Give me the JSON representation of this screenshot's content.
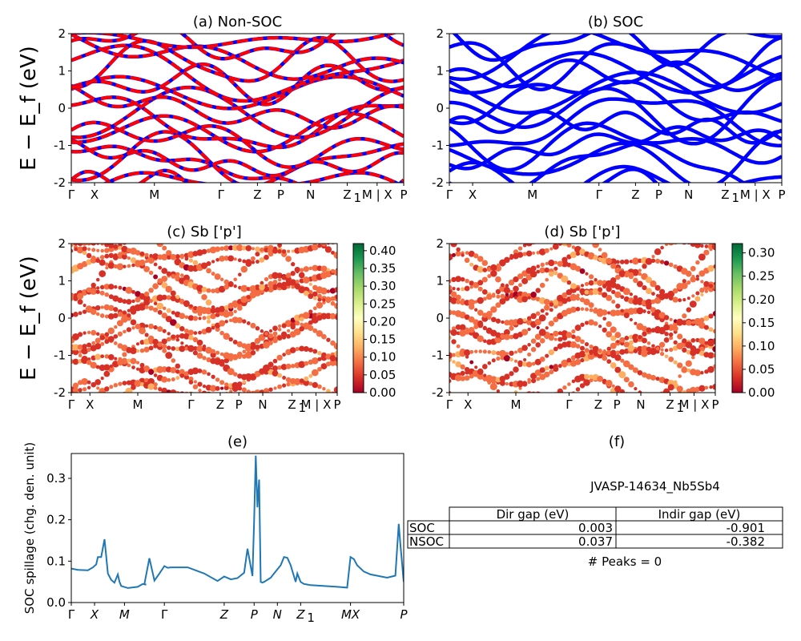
{
  "y_axis_label": "E − E_f (eV)",
  "chart_data": [
    {
      "id": "a",
      "type": "line",
      "title": "(a) Non-SOC",
      "ylabel": "E − E_f (eV)",
      "ylim": [
        -2,
        2
      ],
      "yticks": [
        "-2",
        "-1",
        "0",
        "1",
        "2"
      ],
      "xtick_labels": [
        "Γ",
        "X",
        "M",
        "Γ",
        "Z",
        "P",
        "N",
        "Z1",
        "M | X",
        "P"
      ],
      "series_colors": [
        "#0000ff",
        "#ff0000"
      ],
      "line_style": "blue solid bands overlaid with red dashed bands"
    },
    {
      "id": "b",
      "type": "line",
      "title": "(b) SOC",
      "ylim": [
        -2,
        2
      ],
      "yticks": [
        "-2",
        "-1",
        "0",
        "1",
        "2"
      ],
      "xtick_labels": [
        "Γ",
        "X",
        "M",
        "Γ",
        "Z",
        "P",
        "N",
        "Z1",
        "M | X",
        "P"
      ],
      "series_colors": [
        "#0000ff"
      ]
    },
    {
      "id": "c",
      "type": "scatter",
      "title": "(c)  Sb ['p']",
      "ylabel": "E − E_f (eV)",
      "ylim": [
        -2,
        2
      ],
      "yticks": [
        "-2",
        "-1",
        "0",
        "1",
        "2"
      ],
      "xtick_labels": [
        "Γ",
        "X",
        "M",
        "Γ",
        "Z",
        "P",
        "N",
        "Z1",
        "M | X",
        "P"
      ],
      "colorbar": {
        "colormap": "RdYlGn",
        "ticks": [
          "0.00",
          "0.05",
          "0.10",
          "0.15",
          "0.20",
          "0.25",
          "0.30",
          "0.35",
          "0.40"
        ],
        "range": [
          0,
          0.42
        ]
      }
    },
    {
      "id": "d",
      "type": "scatter",
      "title": "(d) Sb ['p']",
      "ylim": [
        -2,
        2
      ],
      "yticks": [
        "-2",
        "-1",
        "0",
        "1",
        "2"
      ],
      "xtick_labels": [
        "Γ",
        "X",
        "M",
        "Γ",
        "Z",
        "P",
        "N",
        "Z1",
        "M | X",
        "P"
      ],
      "colorbar": {
        "colormap": "RdYlGn",
        "ticks": [
          "0.00",
          "0.05",
          "0.10",
          "0.15",
          "0.20",
          "0.25",
          "0.30"
        ],
        "range": [
          0,
          0.32
        ]
      }
    },
    {
      "id": "e",
      "type": "line",
      "title": "(e)",
      "ylabel": "SOC spillage (chg. den. unit)",
      "ylim": [
        0,
        0.36
      ],
      "yticks": [
        "0.0",
        "0.1",
        "0.2",
        "0.3"
      ],
      "xtick_labels": [
        "Γ",
        "X",
        "M",
        "Γ",
        "Z",
        "P",
        "N",
        "Z1",
        "MX",
        "P"
      ],
      "series_colors": [
        "#1f77b4"
      ],
      "x": [
        0.0,
        0.02,
        0.05,
        0.065,
        0.075,
        0.08,
        0.09,
        0.1,
        0.11,
        0.12,
        0.13,
        0.14,
        0.145,
        0.15,
        0.17,
        0.2,
        0.215,
        0.225,
        0.22,
        0.235,
        0.25,
        0.265,
        0.28,
        0.29,
        0.3,
        0.35,
        0.4,
        0.44,
        0.46,
        0.48,
        0.5,
        0.52,
        0.53,
        0.545,
        0.55,
        0.555,
        0.56,
        0.565,
        0.57,
        0.575,
        0.58,
        0.6,
        0.61,
        0.63,
        0.64,
        0.65,
        0.66,
        0.675,
        0.68,
        0.69,
        0.7,
        0.72,
        0.8,
        0.83,
        0.84,
        0.85,
        0.86,
        0.88,
        0.9,
        0.95,
        0.975,
        0.985,
        0.99,
        1.0
      ],
      "values": [
        0.082,
        0.079,
        0.078,
        0.085,
        0.092,
        0.11,
        0.11,
        0.153,
        0.07,
        0.055,
        0.048,
        0.068,
        0.05,
        0.04,
        0.035,
        0.038,
        0.045,
        0.043,
        0.045,
        0.107,
        0.053,
        0.07,
        0.088,
        0.084,
        0.085,
        0.085,
        0.07,
        0.052,
        0.063,
        0.056,
        0.059,
        0.072,
        0.13,
        0.064,
        0.2,
        0.355,
        0.23,
        0.297,
        0.05,
        0.048,
        0.05,
        0.06,
        0.07,
        0.09,
        0.11,
        0.108,
        0.09,
        0.05,
        0.07,
        0.05,
        0.045,
        0.042,
        0.038,
        0.036,
        0.11,
        0.105,
        0.09,
        0.075,
        0.068,
        0.06,
        0.065,
        0.19,
        0.14,
        0.05
      ]
    }
  ],
  "panel_f": {
    "title": "(f)",
    "material_id": "JVASP-14634_Nb5Sb4",
    "table": {
      "columns": [
        "",
        "Dir gap (eV)",
        "Indir gap (eV)"
      ],
      "rows": [
        {
          "label": "SOC",
          "dir": "0.003",
          "indir": "-0.901"
        },
        {
          "label": "NSOC",
          "dir": "0.037",
          "indir": "-0.382"
        }
      ]
    },
    "peaks_text": "# Peaks = 0"
  }
}
